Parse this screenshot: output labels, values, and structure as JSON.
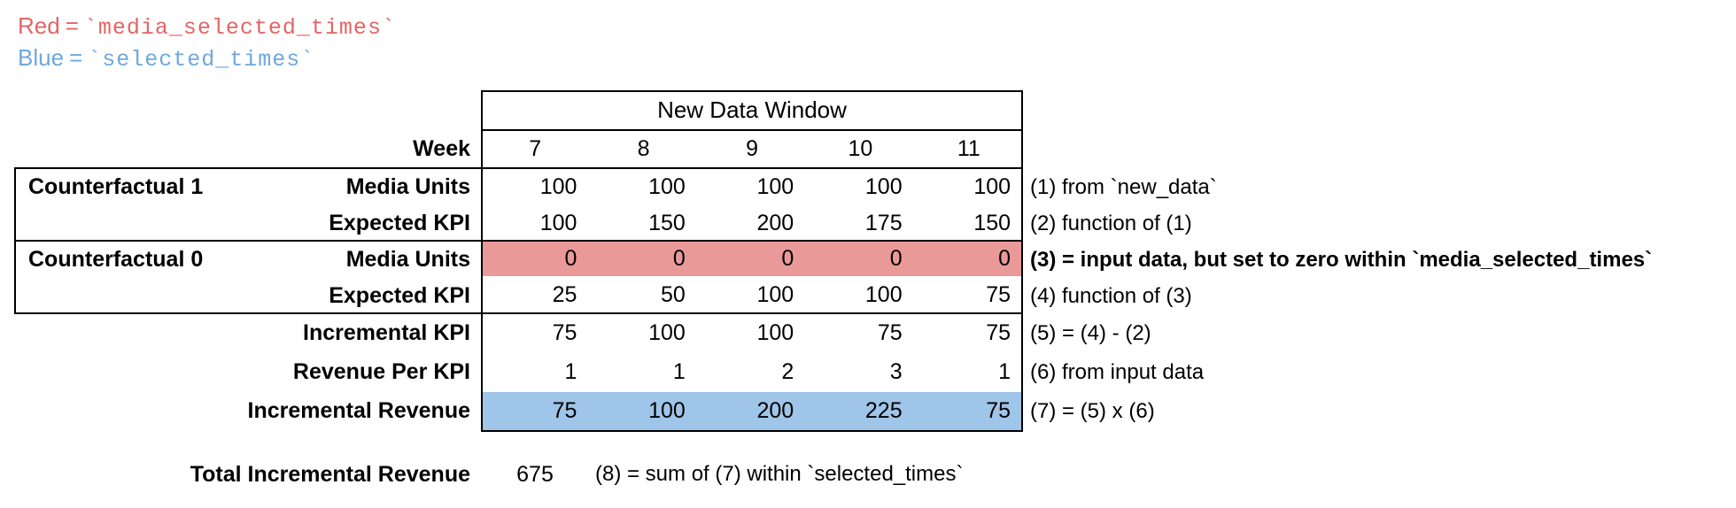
{
  "legend": {
    "red": {
      "label": "Red",
      "eq": "=",
      "code": "`media_selected_times`",
      "color": "#e06666"
    },
    "blue": {
      "label": "Blue",
      "eq": "=",
      "code": "`selected_times`",
      "color": "#6fa8dc"
    }
  },
  "colors": {
    "red_fill": "#ea9999",
    "blue_fill": "#9fc5e8",
    "border": "#000000"
  },
  "table": {
    "header": "New Data Window",
    "week_label": "Week",
    "weeks": [
      "7",
      "8",
      "9",
      "10",
      "11"
    ],
    "groups": [
      {
        "label": "Counterfactual 1"
      },
      {
        "label": "Counterfactual 0"
      }
    ],
    "rows": [
      {
        "label": "Media Units",
        "values": [
          "100",
          "100",
          "100",
          "100",
          "100"
        ],
        "annotation": "(1) from `new_data`"
      },
      {
        "label": "Expected KPI",
        "values": [
          "100",
          "150",
          "200",
          "175",
          "150"
        ],
        "annotation": "(2) function of (1)"
      },
      {
        "label": "Media Units",
        "values": [
          "0",
          "0",
          "0",
          "0",
          "0"
        ],
        "annotation": "(3) = input data, but set to zero within `media_selected_times`",
        "highlight": "red"
      },
      {
        "label": "Expected KPI",
        "values": [
          "25",
          "50",
          "100",
          "100",
          "75"
        ],
        "annotation": "(4) function of (3)"
      },
      {
        "label": "Incremental KPI",
        "values": [
          "75",
          "100",
          "100",
          "75",
          "75"
        ],
        "annotation": "(5) = (4) - (2)"
      },
      {
        "label": "Revenue Per KPI",
        "values": [
          "1",
          "1",
          "2",
          "3",
          "1"
        ],
        "annotation": "(6) from input data"
      },
      {
        "label": "Incremental Revenue",
        "values": [
          "75",
          "100",
          "200",
          "225",
          "75"
        ],
        "annotation": "(7) = (5) x (6)",
        "highlight": "blue"
      }
    ],
    "total": {
      "label": "Total Incremental Revenue",
      "value": "675",
      "annotation": "(8) = sum of (7) within `selected_times`"
    }
  }
}
